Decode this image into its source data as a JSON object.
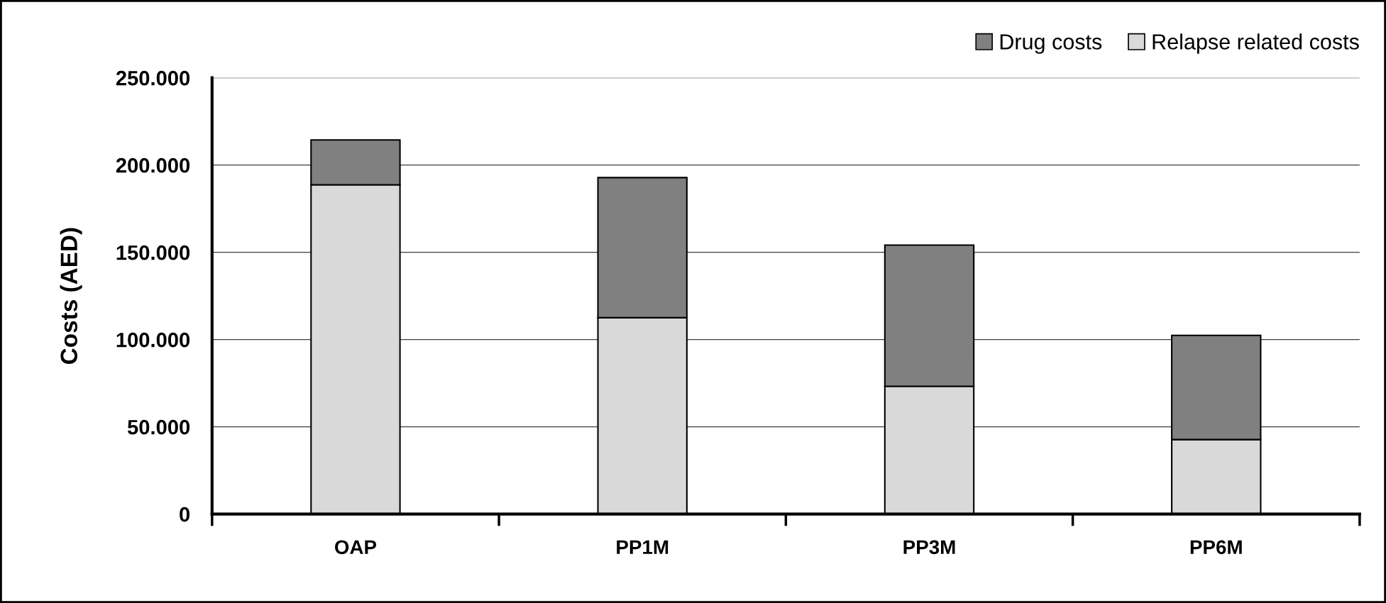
{
  "chart_data": {
    "type": "bar",
    "stacked": true,
    "ylabel": "Costs (AED)",
    "categories": [
      "OAP",
      "PP1M",
      "PP3M",
      "PP6M"
    ],
    "series": [
      {
        "name": "Relapse related costs",
        "color": "#d9d9d9",
        "values": [
          188700,
          112500,
          73200,
          42700
        ]
      },
      {
        "name": "Drug costs",
        "color": "#808080",
        "values": [
          25700,
          80300,
          80900,
          59700
        ]
      }
    ],
    "ylim": [
      0,
      250000
    ],
    "yticks": [
      0,
      {
        "value": 50000,
        "label": "50.000"
      },
      {
        "value": 100000,
        "label": "100.000"
      },
      {
        "value": 150000,
        "label": "150.000"
      },
      {
        "value": 200000,
        "label": "200.000"
      },
      {
        "value": 250000,
        "label": "250.000"
      }
    ],
    "grid": "y",
    "legend": "top right"
  }
}
